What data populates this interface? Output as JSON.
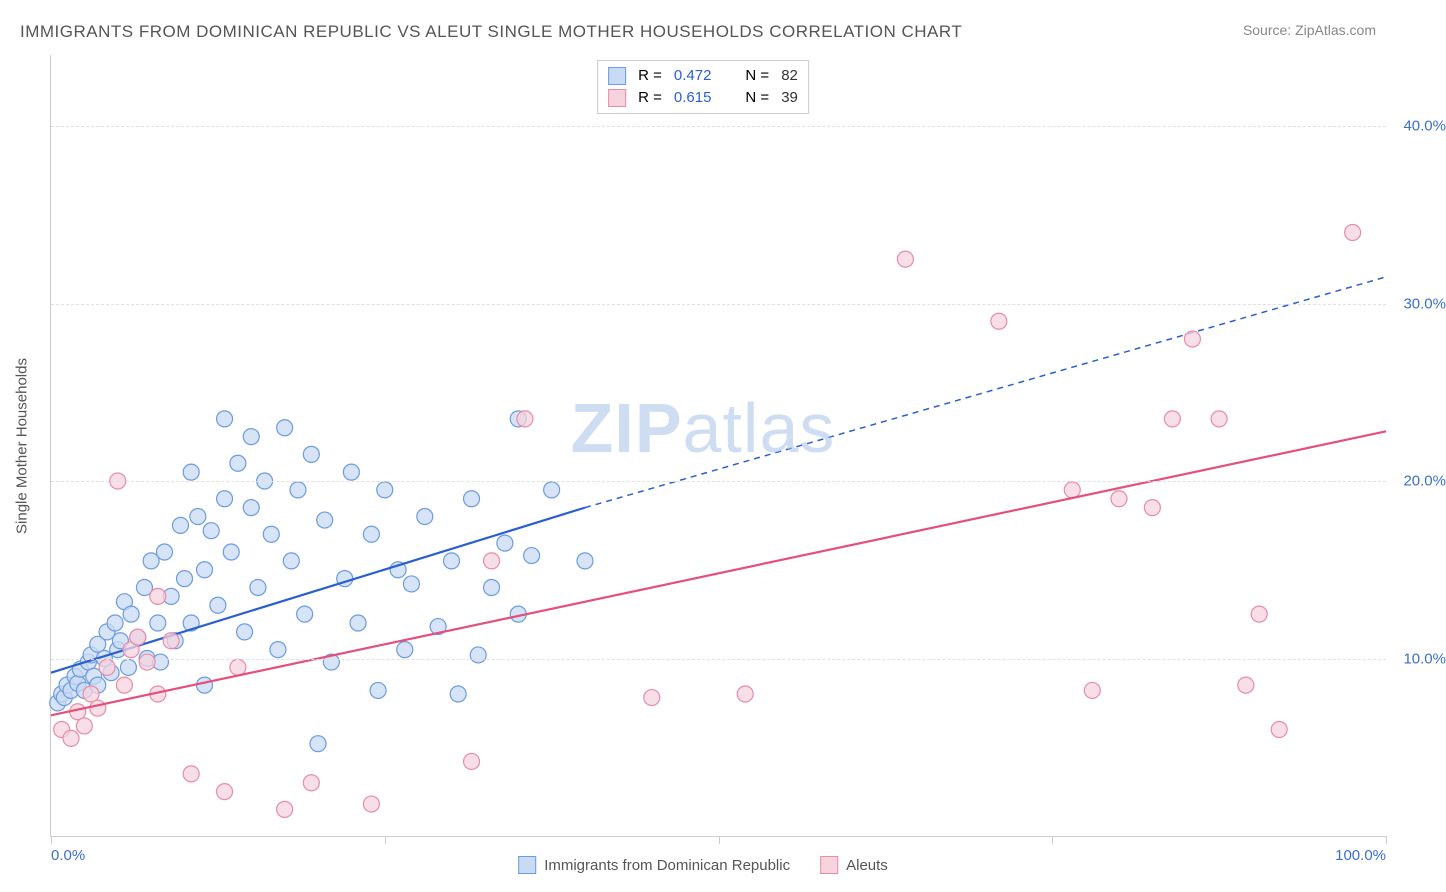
{
  "title": "IMMIGRANTS FROM DOMINICAN REPUBLIC VS ALEUT SINGLE MOTHER HOUSEHOLDS CORRELATION CHART",
  "source_label": "Source:",
  "source_name": "ZipAtlas.com",
  "y_axis_title": "Single Mother Households",
  "watermark_bold": "ZIP",
  "watermark_light": "atlas",
  "chart": {
    "type": "scatter",
    "xlim": [
      0,
      100
    ],
    "ylim": [
      0,
      44
    ],
    "x_ticks": [
      0,
      25,
      50,
      75,
      100
    ],
    "x_tick_labels": [
      "0.0%",
      "",
      "",
      "",
      "100.0%"
    ],
    "y_ticks": [
      10,
      20,
      30,
      40
    ],
    "y_tick_labels": [
      "10.0%",
      "20.0%",
      "30.0%",
      "40.0%"
    ],
    "background_color": "#ffffff",
    "grid_color": "#e0e0e0",
    "axis_color": "#cccccc",
    "tick_label_color": "#3b6fc9",
    "marker_radius": 8,
    "marker_stroke_width": 1.2,
    "trend_line_width": 2.2,
    "series": [
      {
        "name": "Immigrants from Dominican Republic",
        "fill": "#c9dbf4",
        "stroke": "#6b9be0",
        "trend_color": "#2a5fd0",
        "trend_line": {
          "x1": 0,
          "y1": 9.2,
          "x2": 40,
          "y2": 18.5,
          "x2_ext": 100,
          "y2_ext": 31.5
        },
        "r": "0.472",
        "n": "82",
        "points": [
          [
            0.5,
            7.5
          ],
          [
            0.8,
            8.0
          ],
          [
            1.0,
            7.8
          ],
          [
            1.2,
            8.5
          ],
          [
            1.5,
            8.2
          ],
          [
            1.8,
            9.0
          ],
          [
            2.0,
            8.6
          ],
          [
            2.2,
            9.4
          ],
          [
            2.5,
            8.2
          ],
          [
            2.8,
            9.8
          ],
          [
            3.0,
            10.2
          ],
          [
            3.2,
            9.0
          ],
          [
            3.5,
            10.8
          ],
          [
            3.5,
            8.5
          ],
          [
            4.0,
            10.0
          ],
          [
            4.2,
            11.5
          ],
          [
            4.5,
            9.2
          ],
          [
            4.8,
            12.0
          ],
          [
            5.0,
            10.5
          ],
          [
            5.2,
            11.0
          ],
          [
            5.5,
            13.2
          ],
          [
            5.8,
            9.5
          ],
          [
            6.0,
            12.5
          ],
          [
            6.5,
            11.2
          ],
          [
            7.0,
            14.0
          ],
          [
            7.2,
            10.0
          ],
          [
            7.5,
            15.5
          ],
          [
            8.0,
            12.0
          ],
          [
            8.2,
            9.8
          ],
          [
            8.5,
            16.0
          ],
          [
            9.0,
            13.5
          ],
          [
            9.3,
            11.0
          ],
          [
            9.7,
            17.5
          ],
          [
            10.0,
            14.5
          ],
          [
            10.5,
            12.0
          ],
          [
            10.5,
            20.5
          ],
          [
            11.0,
            18.0
          ],
          [
            11.5,
            15.0
          ],
          [
            11.5,
            8.5
          ],
          [
            12.0,
            17.2
          ],
          [
            12.5,
            13.0
          ],
          [
            13.0,
            23.5
          ],
          [
            13.0,
            19.0
          ],
          [
            13.5,
            16.0
          ],
          [
            14.0,
            21.0
          ],
          [
            14.5,
            11.5
          ],
          [
            15.0,
            18.5
          ],
          [
            15.0,
            22.5
          ],
          [
            15.5,
            14.0
          ],
          [
            16.0,
            20.0
          ],
          [
            16.5,
            17.0
          ],
          [
            17.0,
            10.5
          ],
          [
            17.5,
            23.0
          ],
          [
            18.0,
            15.5
          ],
          [
            18.5,
            19.5
          ],
          [
            19.0,
            12.5
          ],
          [
            19.5,
            21.5
          ],
          [
            20.0,
            5.2
          ],
          [
            20.5,
            17.8
          ],
          [
            21.0,
            9.8
          ],
          [
            22.0,
            14.5
          ],
          [
            22.5,
            20.5
          ],
          [
            23.0,
            12.0
          ],
          [
            24.0,
            17.0
          ],
          [
            24.5,
            8.2
          ],
          [
            25.0,
            19.5
          ],
          [
            26.0,
            15.0
          ],
          [
            26.5,
            10.5
          ],
          [
            27.0,
            14.2
          ],
          [
            28.0,
            18.0
          ],
          [
            29.0,
            11.8
          ],
          [
            30.0,
            15.5
          ],
          [
            30.5,
            8.0
          ],
          [
            31.5,
            19.0
          ],
          [
            32.0,
            10.2
          ],
          [
            33.0,
            14.0
          ],
          [
            34.0,
            16.5
          ],
          [
            35.0,
            12.5
          ],
          [
            35.0,
            23.5
          ],
          [
            36.0,
            15.8
          ],
          [
            37.5,
            19.5
          ],
          [
            40.0,
            15.5
          ]
        ]
      },
      {
        "name": "Aleuts",
        "fill": "#f6d3dd",
        "stroke": "#e88ca8",
        "trend_color": "#e54f7b",
        "trend_line": {
          "x1": 0,
          "y1": 6.8,
          "x2": 100,
          "y2": 22.8
        },
        "r": "0.615",
        "n": "39",
        "points": [
          [
            0.8,
            6.0
          ],
          [
            1.5,
            5.5
          ],
          [
            2.0,
            7.0
          ],
          [
            2.5,
            6.2
          ],
          [
            3.0,
            8.0
          ],
          [
            3.5,
            7.2
          ],
          [
            4.2,
            9.5
          ],
          [
            5.0,
            20.0
          ],
          [
            5.5,
            8.5
          ],
          [
            6.0,
            10.5
          ],
          [
            6.5,
            11.2
          ],
          [
            7.2,
            9.8
          ],
          [
            8.0,
            8.0
          ],
          [
            8.0,
            13.5
          ],
          [
            9.0,
            11.0
          ],
          [
            10.5,
            3.5
          ],
          [
            13.0,
            2.5
          ],
          [
            14.0,
            9.5
          ],
          [
            17.5,
            1.5
          ],
          [
            19.5,
            3.0
          ],
          [
            24.0,
            1.8
          ],
          [
            31.5,
            4.2
          ],
          [
            33.0,
            15.5
          ],
          [
            35.5,
            23.5
          ],
          [
            45.0,
            7.8
          ],
          [
            52.0,
            8.0
          ],
          [
            64.0,
            32.5
          ],
          [
            71.0,
            29.0
          ],
          [
            76.5,
            19.5
          ],
          [
            78.0,
            8.2
          ],
          [
            80.0,
            19.0
          ],
          [
            82.5,
            18.5
          ],
          [
            84.0,
            23.5
          ],
          [
            85.5,
            28.0
          ],
          [
            87.5,
            23.5
          ],
          [
            89.5,
            8.5
          ],
          [
            90.5,
            12.5
          ],
          [
            92.0,
            6.0
          ],
          [
            97.5,
            34.0
          ]
        ]
      }
    ]
  },
  "legend_top": {
    "r_label": "R =",
    "n_label": "N ="
  }
}
